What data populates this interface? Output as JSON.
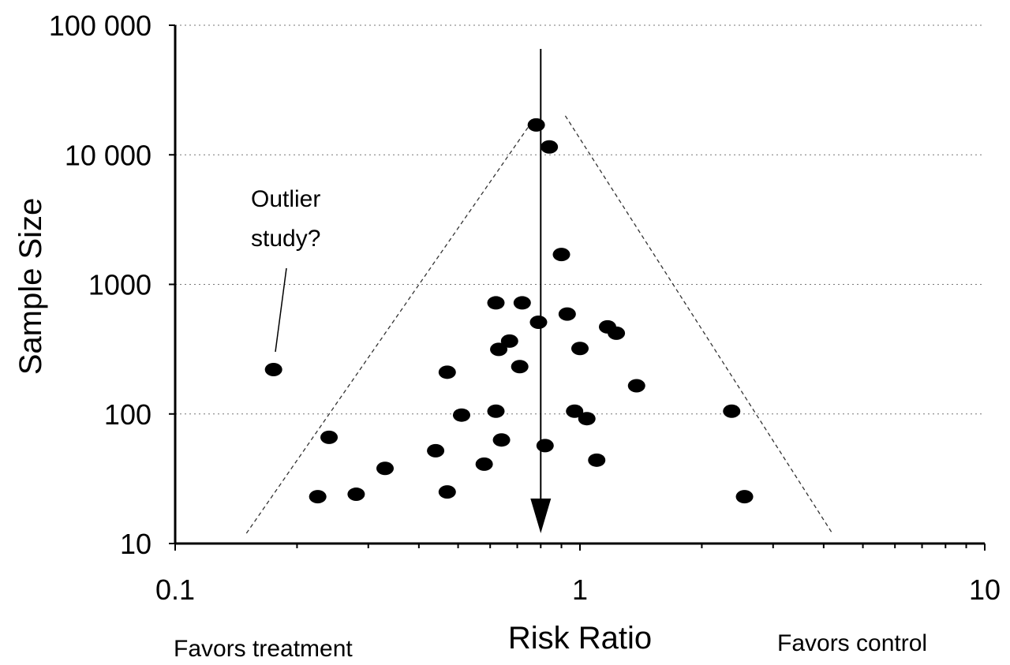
{
  "chart_data": {
    "type": "scatter",
    "xlabel": "Risk Ratio",
    "ylabel": "Sample Size",
    "xscale": "log",
    "yscale": "log",
    "xlim": [
      0.1,
      10
    ],
    "ylim": [
      10,
      100000
    ],
    "x_ticks": [
      "0.1",
      "1",
      "10"
    ],
    "y_ticks": [
      "10",
      "100",
      "1000",
      "10 000",
      "100 000"
    ],
    "grid": "horizontal dotted",
    "favors_left": "Favors treatment",
    "favors_right": "Favors control",
    "annotation": "Outlier study?",
    "reference_line_x": 0.8,
    "funnel": {
      "left": [
        [
          0.15,
          12
        ],
        [
          0.77,
          19000
        ]
      ],
      "right": [
        [
          0.92,
          20000
        ],
        [
          4.2,
          12
        ]
      ]
    },
    "points": [
      {
        "x": 0.78,
        "y": 17000
      },
      {
        "x": 0.84,
        "y": 11500
      },
      {
        "x": 0.9,
        "y": 1700
      },
      {
        "x": 0.62,
        "y": 720
      },
      {
        "x": 0.72,
        "y": 720
      },
      {
        "x": 0.79,
        "y": 510
      },
      {
        "x": 0.93,
        "y": 590
      },
      {
        "x": 1.17,
        "y": 470
      },
      {
        "x": 1.23,
        "y": 420
      },
      {
        "x": 0.67,
        "y": 365
      },
      {
        "x": 0.63,
        "y": 315
      },
      {
        "x": 1.0,
        "y": 320
      },
      {
        "x": 0.71,
        "y": 232
      },
      {
        "x": 0.47,
        "y": 210
      },
      {
        "x": 1.38,
        "y": 165
      },
      {
        "x": 0.175,
        "y": 220
      },
      {
        "x": 0.51,
        "y": 98
      },
      {
        "x": 0.62,
        "y": 105
      },
      {
        "x": 0.97,
        "y": 105
      },
      {
        "x": 1.04,
        "y": 92
      },
      {
        "x": 2.37,
        "y": 105
      },
      {
        "x": 0.24,
        "y": 66
      },
      {
        "x": 0.64,
        "y": 63
      },
      {
        "x": 0.82,
        "y": 57
      },
      {
        "x": 0.44,
        "y": 52
      },
      {
        "x": 0.58,
        "y": 41
      },
      {
        "x": 1.1,
        "y": 44
      },
      {
        "x": 0.33,
        "y": 38
      },
      {
        "x": 0.225,
        "y": 23
      },
      {
        "x": 0.28,
        "y": 24
      },
      {
        "x": 0.47,
        "y": 25
      },
      {
        "x": 2.55,
        "y": 23
      }
    ]
  },
  "colors": {
    "ink": "#000000",
    "grid": "#777777",
    "background": "#ffffff"
  }
}
